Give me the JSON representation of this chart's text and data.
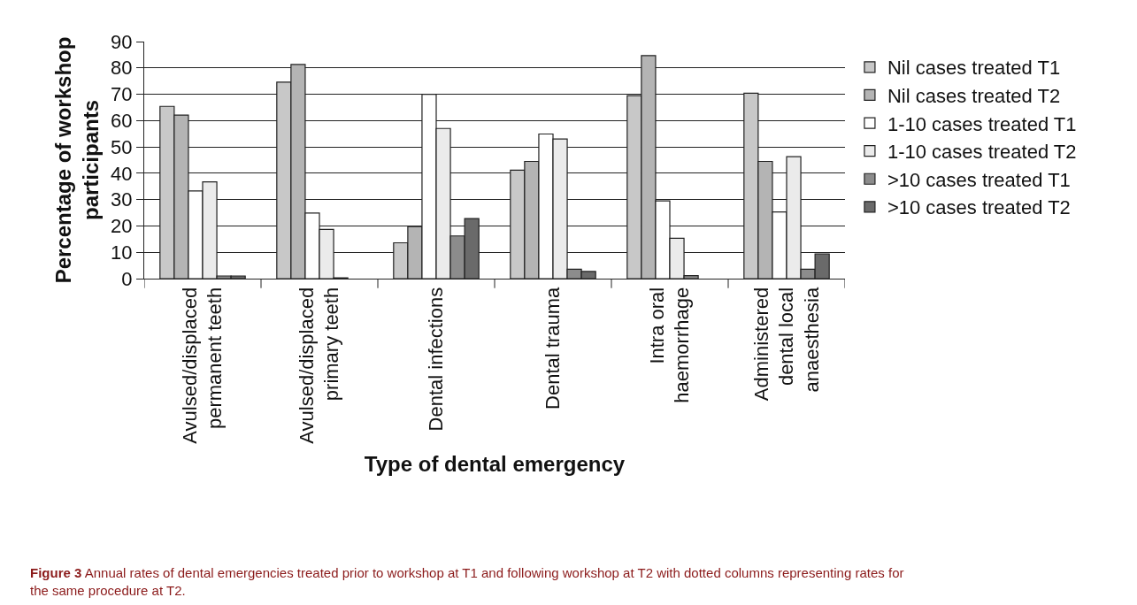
{
  "chart_data": {
    "type": "bar",
    "xlabel": "Type of dental emergency",
    "ylabel": "Percentage of workshop participants",
    "categories": [
      "Avulsed/displaced permanent teeth",
      "Avulsed/displaced primary teeth",
      "Dental infections",
      "Dental trauma",
      "Intra oral haemorrhage",
      "Administered dental local anaesthesia"
    ],
    "series": [
      {
        "name": "Nil cases treated T1",
        "color": "#c8c8c8",
        "values": [
          65.4,
          74.6,
          13.6,
          41.2,
          69.5,
          70.4
        ]
      },
      {
        "name": "Nil cases treated T2",
        "color": "#b4b4b4",
        "values": [
          62.1,
          81.3,
          19.8,
          44.5,
          84.7,
          44.5
        ]
      },
      {
        "name": "1-10 cases treated T1",
        "color": "#ffffff",
        "values": [
          33.3,
          24.9,
          70,
          54.9,
          29.5,
          25.3
        ]
      },
      {
        "name": "1-10 cases treated T2",
        "color": "#ebebeb",
        "values": [
          36.7,
          18.7,
          57,
          53,
          15.3,
          46.3
        ]
      },
      {
        "name": ">10 cases treated T1",
        "color": "#8c8c8c",
        "values": [
          1,
          0.3,
          16.2,
          3.6,
          1.1,
          3.6
        ]
      },
      {
        "name": ">10 cases treated T2",
        "color": "#6a6a6a",
        "values": [
          1,
          null,
          22.8,
          2.7,
          null,
          9.4
        ]
      }
    ],
    "ylim": [
      0,
      90
    ],
    "yticks": [
      0,
      10,
      20,
      30,
      40,
      50,
      60,
      70,
      80,
      90
    ],
    "grid": "y",
    "legend": "right",
    "annotations": [
      "Figure 3 Annual rates of dental emergencies treated prior to workshop at T1 and following workshop at T2 with dotted columns representing rates for the same procedure at T2."
    ]
  }
}
